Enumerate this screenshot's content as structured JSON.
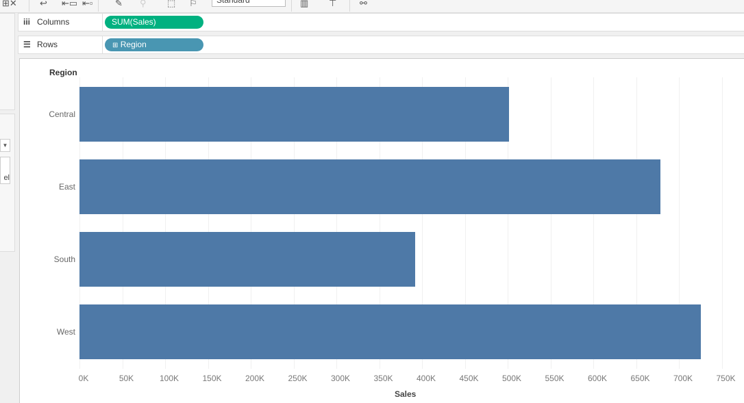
{
  "toolbar": {
    "mark_size_select": "Standard",
    "icons": [
      "clear-sheet-icon",
      "swap-icon",
      "sort-ascending-icon",
      "sort-descending-icon",
      "highlight-icon",
      "group-icon",
      "labels-icon",
      "pin-icon",
      "show-me-icon",
      "presentation-icon",
      "share-icon"
    ]
  },
  "shelves": {
    "columns_label": "Columns",
    "columns_pill": "SUM(Sales)",
    "rows_label": "Rows",
    "rows_pill": "Region",
    "columns_color": "#00b180",
    "rows_color": "#4996b2"
  },
  "left_pane": {
    "partial_label": "el"
  },
  "chart_data": {
    "type": "bar",
    "orientation": "horizontal",
    "categories": [
      "Central",
      "East",
      "South",
      "West"
    ],
    "values": [
      501240,
      678781,
      391722,
      725458
    ],
    "row_header": "Region",
    "xlabel": "Sales",
    "xticks": [
      "0K",
      "50K",
      "100K",
      "150K",
      "200K",
      "250K",
      "300K",
      "350K",
      "400K",
      "450K",
      "500K",
      "550K",
      "600K",
      "650K",
      "700K",
      "750K"
    ],
    "xlim": [
      0,
      762000
    ],
    "grid": "vertical",
    "bar_color": "#4e79a7"
  }
}
